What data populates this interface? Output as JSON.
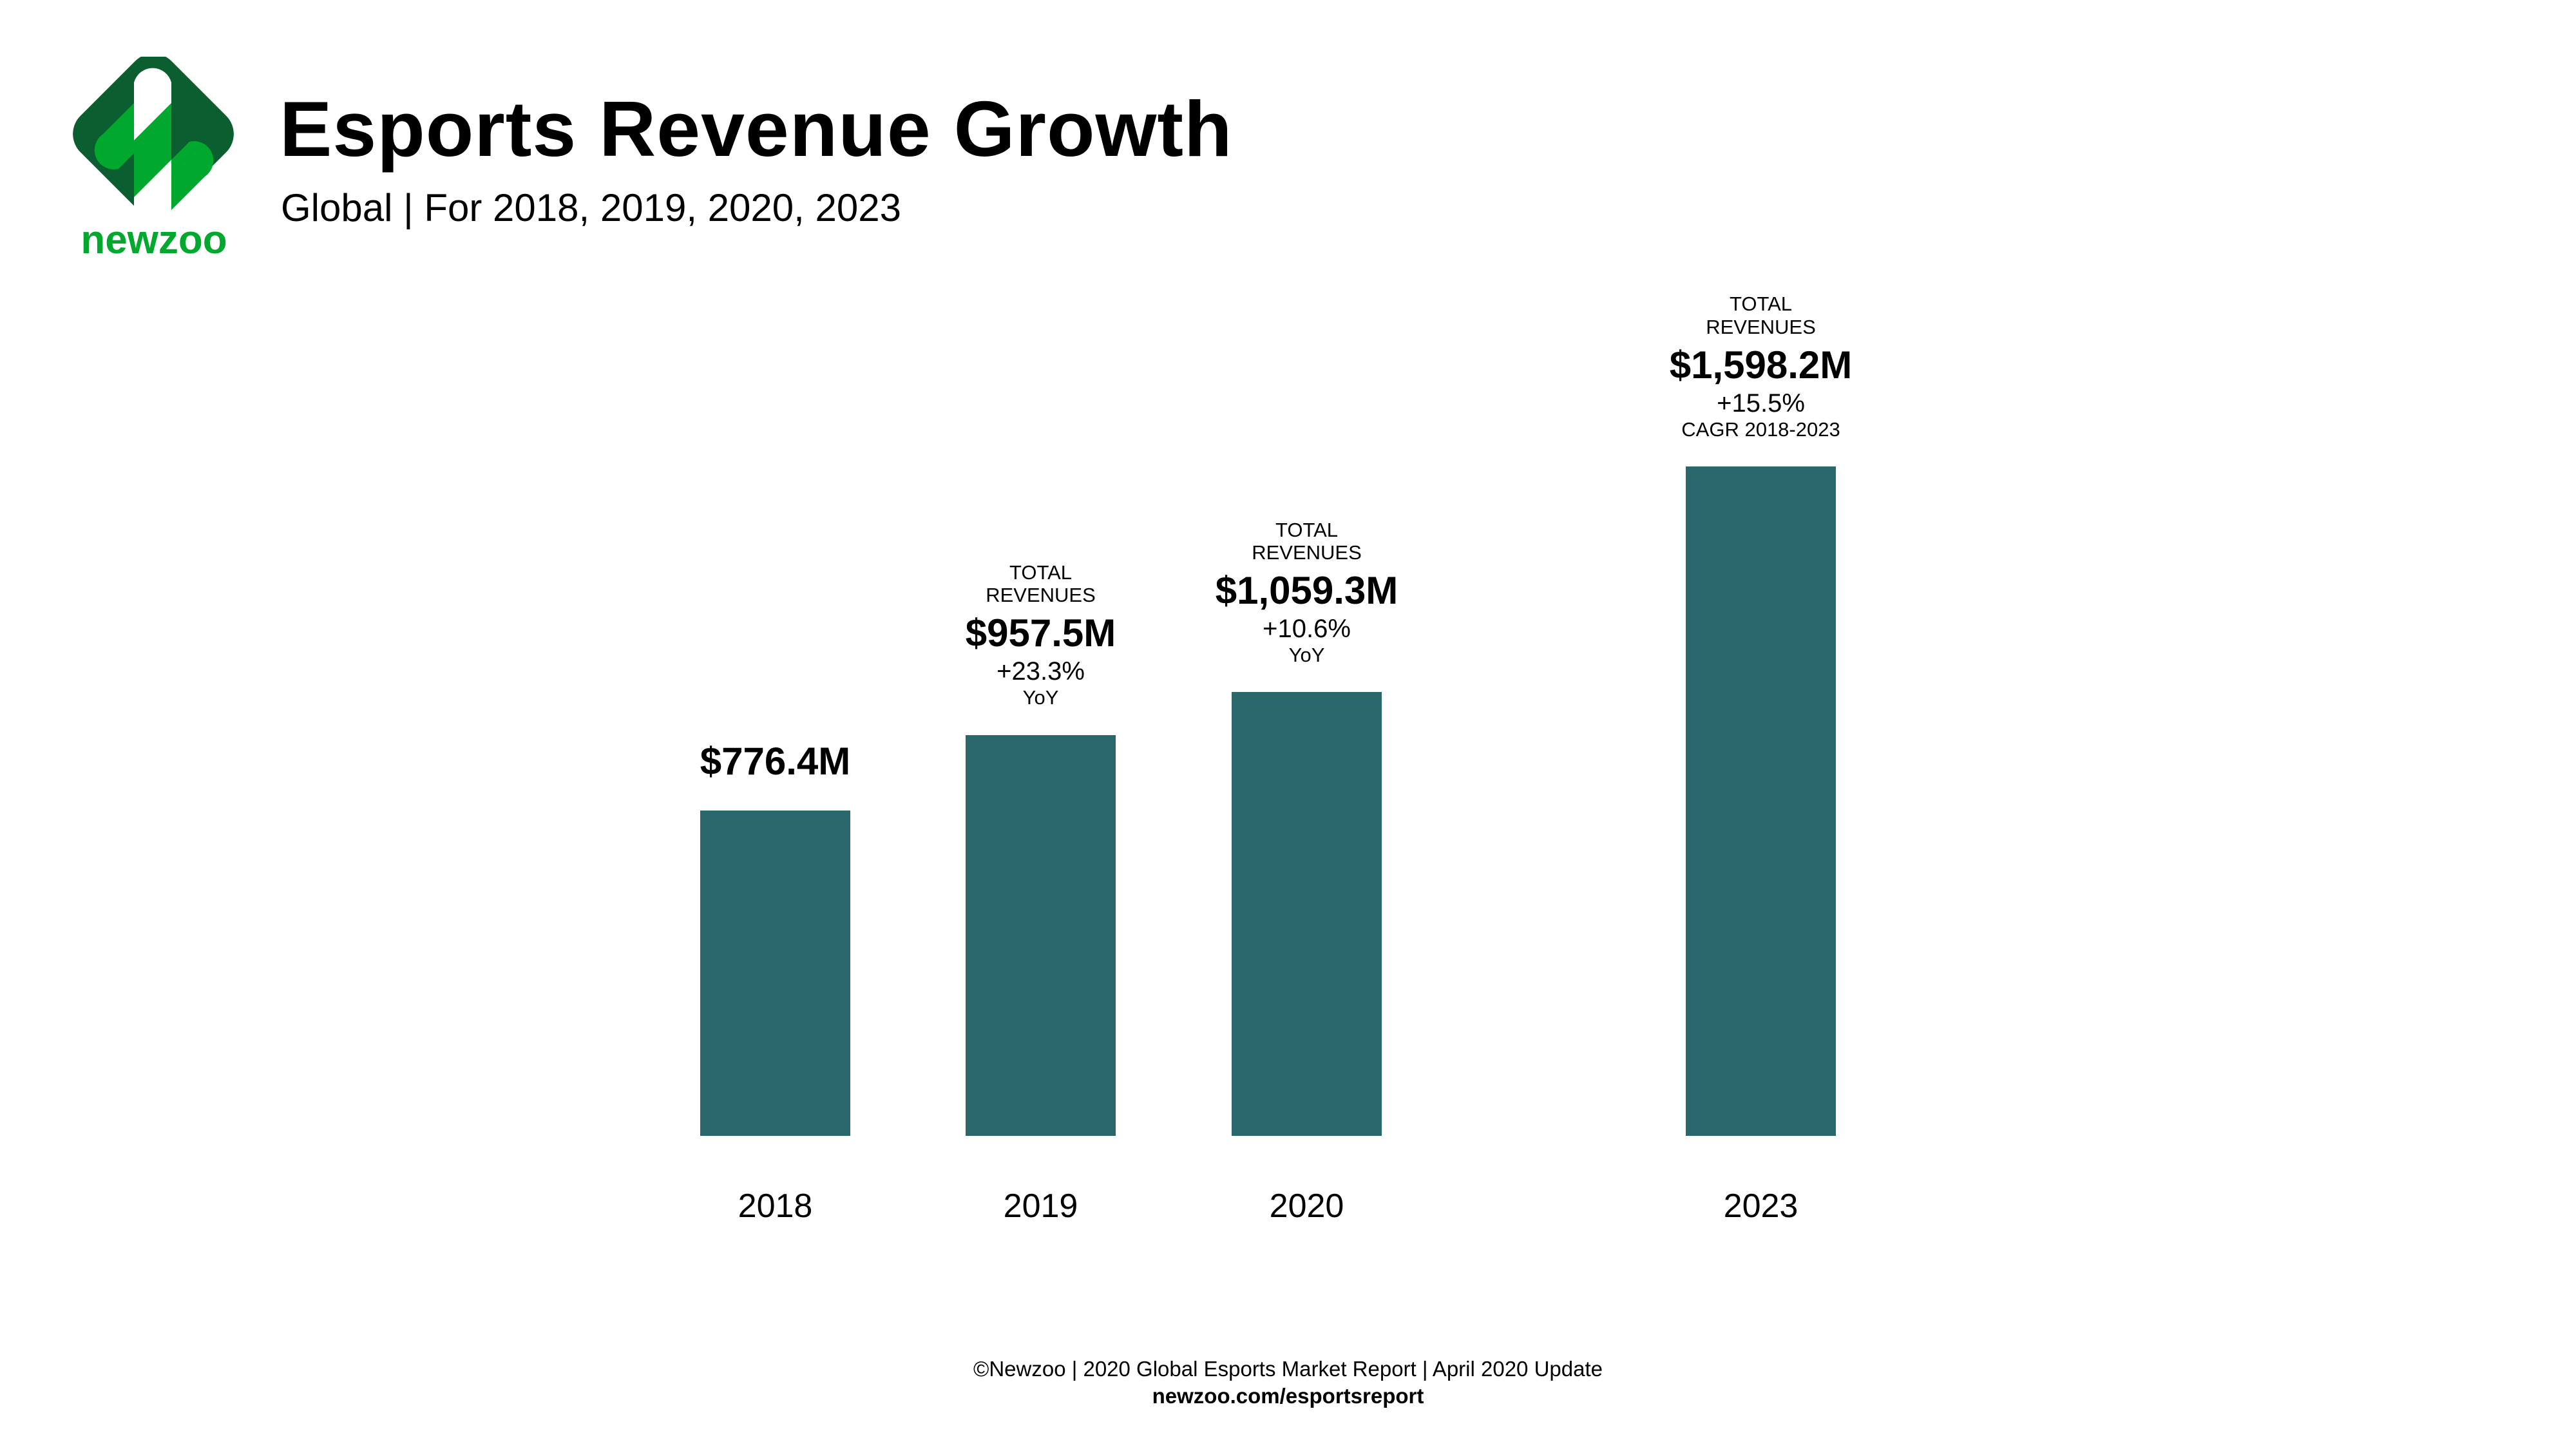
{
  "brand": {
    "name": "newzoo",
    "colors": {
      "dark": "#0a5e2f",
      "light": "#00a82d",
      "bar": "#29676a"
    }
  },
  "header": {
    "title": "Esports Revenue Growth",
    "subtitle": "Global | For 2018, 2019, 2020, 2023"
  },
  "chart_data": {
    "type": "bar",
    "categories": [
      "2018",
      "2019",
      "2020",
      "2023"
    ],
    "values": [
      776.4,
      957.5,
      1059.3,
      1598.2
    ],
    "unit": "$M",
    "grid": false,
    "annotations": [
      {
        "label": "",
        "value": "$776.4M",
        "change": "",
        "note": ""
      },
      {
        "label": "TOTAL REVENUES",
        "value": "$957.5M",
        "change": "+23.3%",
        "note": "YoY"
      },
      {
        "label": "TOTAL REVENUES",
        "value": "$1,059.3M",
        "change": "+10.6%",
        "note": "YoY"
      },
      {
        "label": "TOTAL REVENUES",
        "value": "$1,598.2M",
        "change": "+15.5%",
        "note": "CAGR 2018-2023"
      }
    ]
  },
  "footer": {
    "source": "©Newzoo | 2020 Global Esports Market Report | April 2020 Update",
    "link": "newzoo.com/esportsreport"
  }
}
